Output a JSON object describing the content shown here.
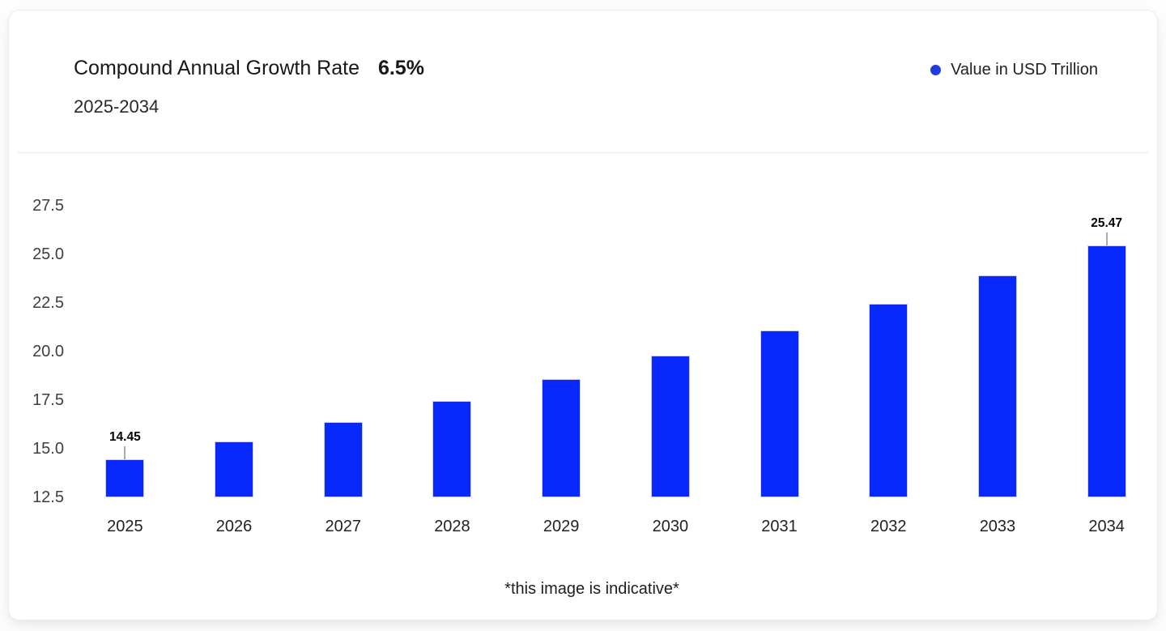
{
  "header": {
    "title": "Compound Annual Growth Rate",
    "cagr": "6.5%",
    "subtitle": "2025-2034"
  },
  "legend": {
    "label": "Value in USD Trillion"
  },
  "footer": {
    "note": "*this image is indicative*"
  },
  "colors": {
    "bar": "#0828fc",
    "bar_edge": "#c9cfff",
    "legend_dot": "#1e3ce1",
    "leader_line": "#ababab"
  },
  "chart_data": {
    "type": "bar",
    "title": "Compound Annual Growth Rate 6.5% 2025-2034",
    "series_name": "Value in USD Trillion",
    "unit": "USD Trillion",
    "categories": [
      "2025",
      "2026",
      "2027",
      "2028",
      "2029",
      "2030",
      "2031",
      "2032",
      "2033",
      "2034"
    ],
    "values": [
      14.45,
      15.39,
      16.39,
      17.45,
      18.59,
      19.8,
      21.08,
      22.45,
      23.91,
      25.47
    ],
    "bar_labels": [
      "14.45",
      "",
      "",
      "",
      "",
      "",
      "",
      "",
      "",
      "25.47"
    ],
    "xlabel": "",
    "ylabel": "",
    "y_ticks": [
      27.5,
      25.0,
      22.5,
      20.0,
      17.5,
      15.0,
      12.5
    ],
    "y_tick_labels": [
      "27.5",
      "25.0",
      "22.5",
      "20.0",
      "17.5",
      "15.0",
      "12.5"
    ],
    "ylim": [
      12.5,
      28.8
    ],
    "grid": false,
    "legend_position": "top-right"
  }
}
